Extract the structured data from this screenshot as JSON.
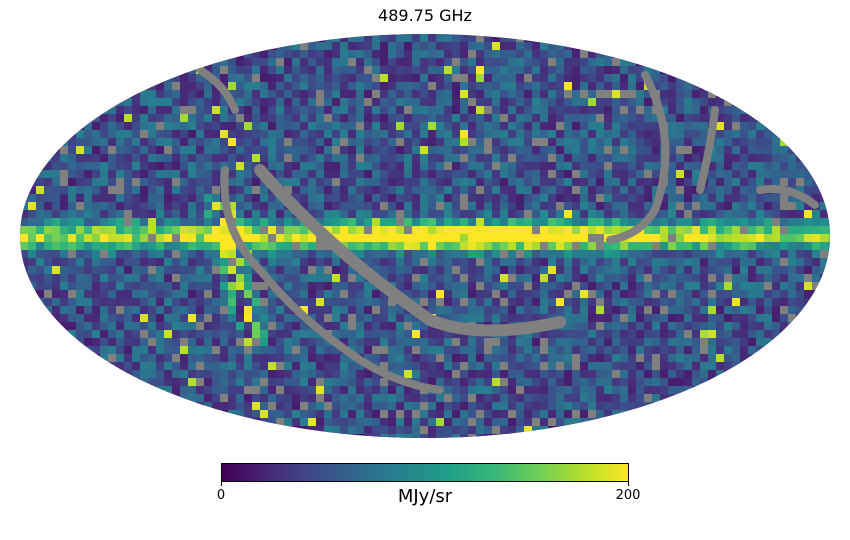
{
  "title": "489.75 GHz",
  "projection": "mollweide",
  "colormap": "viridis",
  "colors": {
    "masked": "#808080",
    "viridis_stops": [
      "#440154",
      "#482878",
      "#3e4989",
      "#31688e",
      "#26828e",
      "#1f9e89",
      "#35b779",
      "#6ece58",
      "#b5de2b",
      "#fde725"
    ]
  },
  "colorbar": {
    "unit": "MJy/sr",
    "min": 0,
    "max": 200,
    "min_label": "0",
    "max_label": "200"
  },
  "features": {
    "galactic_plane": "bright band along equator",
    "masked_regions": "gray scan-path arcs"
  }
}
